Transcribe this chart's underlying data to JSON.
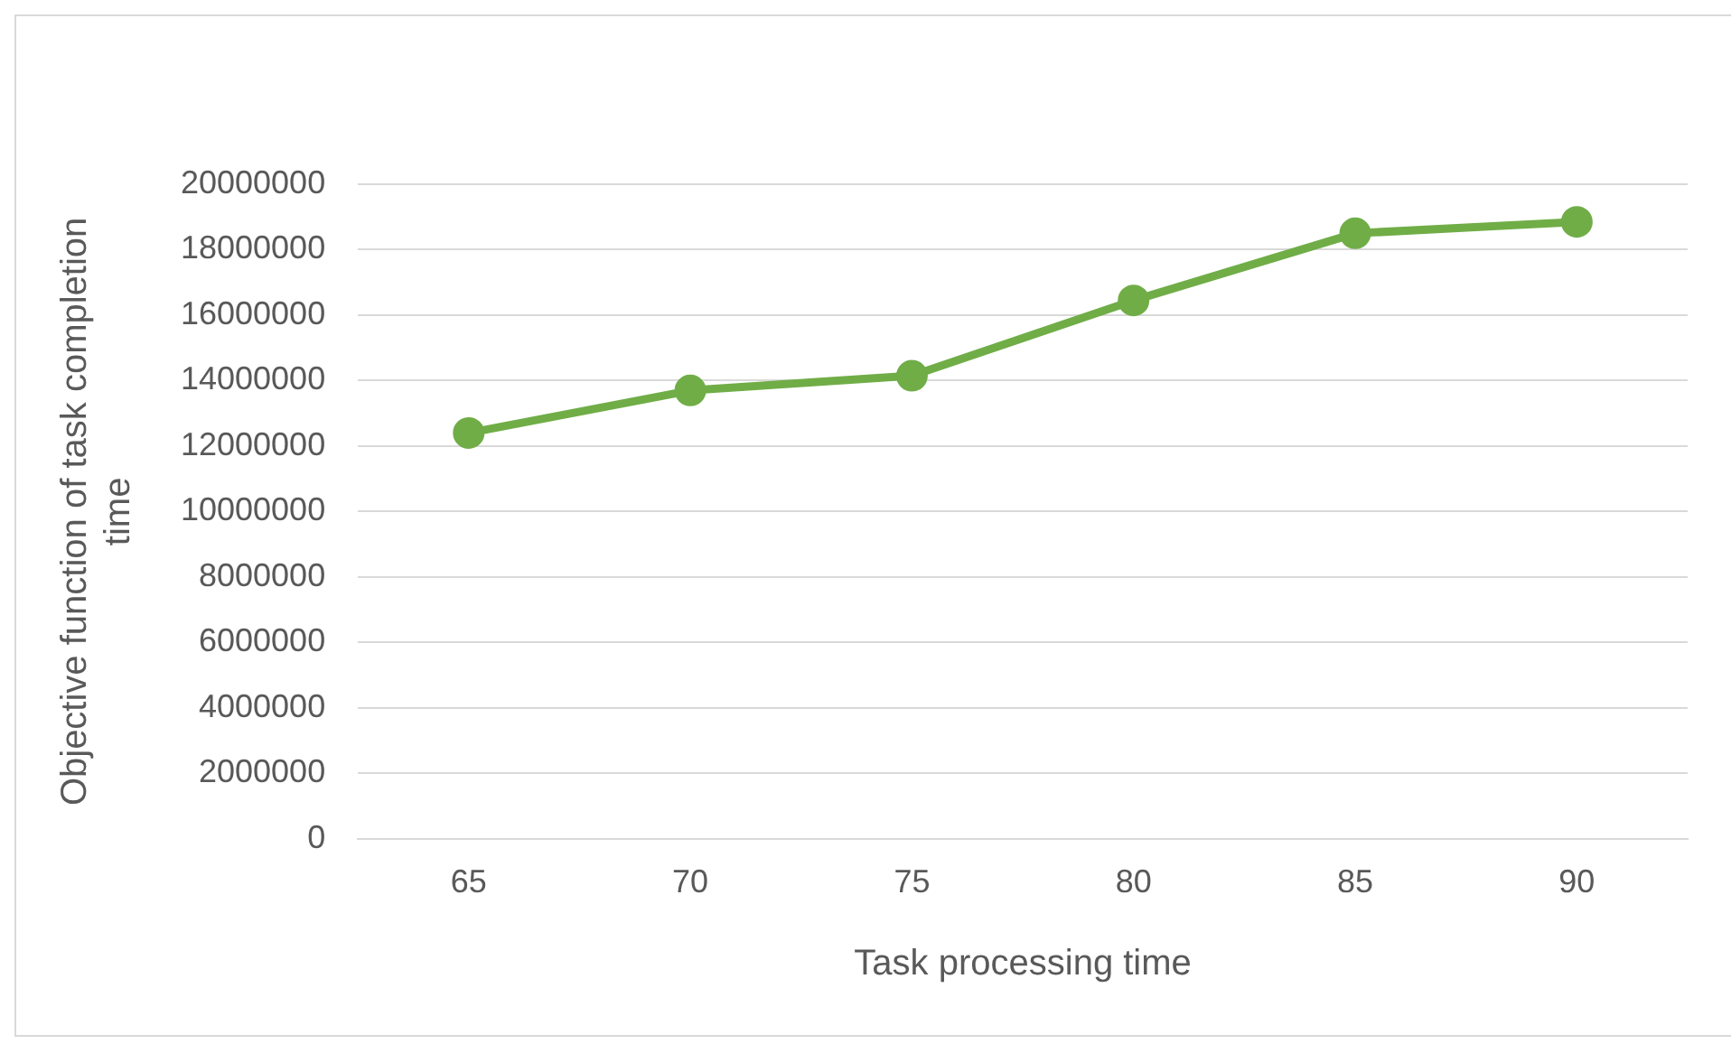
{
  "chart_data": {
    "type": "line",
    "xlabel": "Task processing time",
    "ylabel": "Objective function of task completion time",
    "categories": [
      "65",
      "70",
      "75",
      "80",
      "85",
      "90"
    ],
    "series": [
      {
        "color": "#70ad47",
        "values": [
          12400000,
          13700000,
          14150000,
          16450000,
          18500000,
          18850000
        ]
      }
    ],
    "ylim": [
      0,
      20000000
    ],
    "yticks": [
      0,
      2000000,
      4000000,
      6000000,
      8000000,
      10000000,
      12000000,
      14000000,
      16000000,
      18000000,
      20000000
    ],
    "grid": "y",
    "legend": false,
    "marker": "circle",
    "line_style": "solid"
  }
}
